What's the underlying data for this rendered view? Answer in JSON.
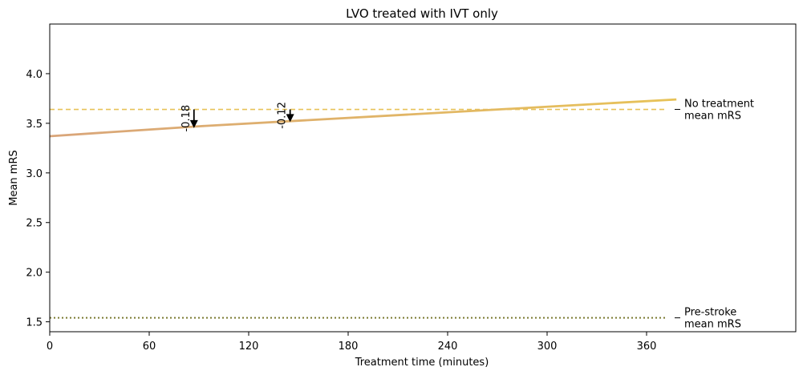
{
  "chart_data": {
    "type": "line",
    "title": "LVO treated with IVT only",
    "xlabel": "Treatment time (minutes)",
    "ylabel": "Mean mRS",
    "xlim": [
      0,
      450
    ],
    "ylim": [
      1.4,
      4.5
    ],
    "xticks": [
      0,
      60,
      120,
      180,
      240,
      300,
      360
    ],
    "yticks": [
      "1.5",
      "2.0",
      "2.5",
      "3.0",
      "3.5",
      "4.0"
    ],
    "grid": false,
    "series": [
      {
        "values": [
          [
            0,
            3.37
          ],
          [
            90,
            3.47
          ],
          [
            378,
            3.74
          ]
        ],
        "color": "#e7c258",
        "gradient_start_color": "#d9a57a",
        "style": "solid"
      }
    ],
    "reference_lines": [
      {
        "y": 3.64,
        "x_end": 372,
        "style": "dashed",
        "color": "#e7c258",
        "label": [
          "No treatment",
          "mean mRS"
        ]
      },
      {
        "y": 1.54,
        "x_end": 372,
        "style": "dotted",
        "color": "#7a7a32",
        "label": [
          "Pre-stroke",
          "mean mRS"
        ]
      }
    ],
    "annotations": [
      {
        "x": 87,
        "y_from": 3.64,
        "y_to": 3.46,
        "text": "-0.18"
      },
      {
        "x": 145,
        "y_from": 3.64,
        "y_to": 3.52,
        "text": "-0.12"
      }
    ]
  }
}
